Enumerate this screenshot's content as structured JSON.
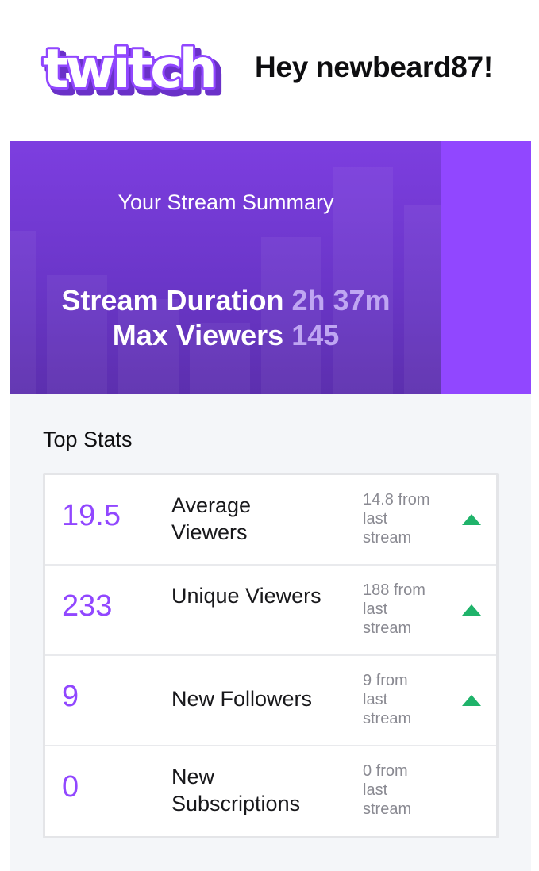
{
  "header": {
    "logo_text": "twitch",
    "greeting": "Hey newbeard87!"
  },
  "summary": {
    "title": "Your Stream Summary",
    "duration_label": "Stream Duration",
    "duration_value": "2h 37m",
    "max_viewers_label": "Max Viewers",
    "max_viewers_value": "145"
  },
  "top_stats": {
    "heading": "Top Stats",
    "rows": [
      {
        "value": "19.5",
        "label": "Average Viewers",
        "change": "14.8 from last stream",
        "trend": "up"
      },
      {
        "value": "233",
        "label": "Unique Viewers",
        "change": "188 from last stream",
        "trend": "up"
      },
      {
        "value": "9",
        "label": "New Followers",
        "change": "9 from last stream",
        "trend": "up"
      },
      {
        "value": "0",
        "label": "New Subscriptions",
        "change": "0 from last stream",
        "trend": "none"
      }
    ]
  },
  "colors": {
    "brand_purple": "#9147ff",
    "hero_dark": "#6b36c9",
    "value_muted": "#bfa6f2",
    "trend_up": "#1fb36a"
  }
}
